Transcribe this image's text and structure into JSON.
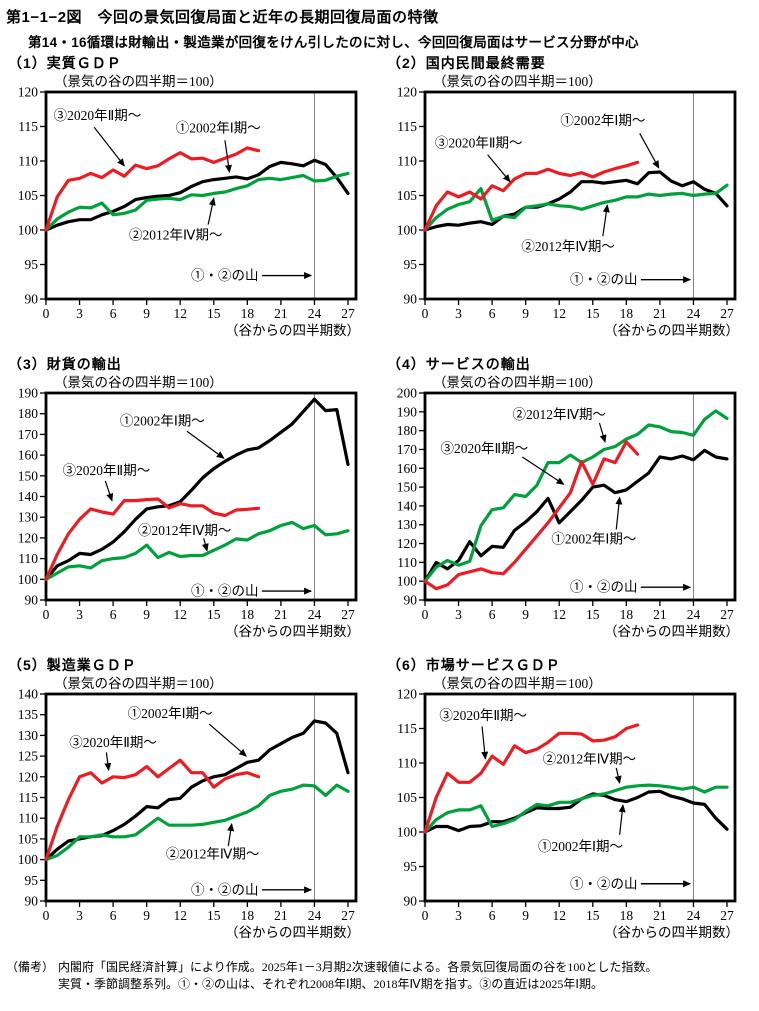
{
  "page": {
    "title": "第1−1−2図　今回の景気回復局面と近年の長期回復局面の特徴",
    "subtitle": "第14・16循環は財輸出・製造業が回復をけん引したのに対し、今回回復局面はサービス分野が中心"
  },
  "notes": {
    "prefix": "（備考）",
    "line1": "内閣府「国民経済計算」により作成。2025年1－3月期2次速報値による。各景気回復局面の谷を100とした指数。",
    "line2": "実質・季節調整系列。①・②の山は、それぞれ2008年Ⅰ期、2018年Ⅳ期を指す。③の直近は2025年Ⅰ期。"
  },
  "style": {
    "red": "#ee1b23",
    "green": "#00a13d",
    "black": "#000000",
    "peak_line_color": "#808080"
  },
  "chart_data": [
    {
      "type": "line",
      "panel_title": "（1）実質ＧＤＰ",
      "unit_note": "（景気の谷の四半期＝100）",
      "xaxis_note": "（谷からの四半期数）",
      "ylim": [
        90,
        120
      ],
      "ytick_step": 5,
      "xticks": [
        0,
        3,
        6,
        9,
        12,
        15,
        18,
        21,
        24,
        27
      ],
      "peak_line_x": 24,
      "peak_label": {
        "text": "①・②の山",
        "y": 93.4,
        "x_text_end": 19.0,
        "x_arrow_start": 19.3,
        "x_arrow_end": 23.7
      },
      "series": [
        {
          "name": "①2002年Ⅰ期〜",
          "color_key": "black",
          "values": [
            100,
            100.7,
            101.2,
            101.5,
            101.5,
            102.2,
            102.7,
            103.4,
            104.4,
            104.7,
            104.9,
            105.0,
            105.4,
            106.3,
            107.0,
            107.3,
            107.5,
            107.7,
            107.4,
            108.0,
            109.2,
            109.8,
            109.6,
            109.3,
            110.1,
            109.5,
            107.6,
            105.3
          ]
        },
        {
          "name": "②2012年Ⅳ期〜",
          "color_key": "green",
          "values": [
            100,
            101.6,
            102.6,
            103.3,
            103.2,
            103.9,
            102.2,
            102.4,
            102.9,
            104.3,
            104.5,
            104.6,
            104.4,
            105.1,
            105.0,
            105.3,
            105.5,
            106.0,
            106.4,
            107.3,
            107.5,
            107.3,
            107.6,
            107.9,
            107.1,
            107.2,
            107.8,
            108.2
          ]
        },
        {
          "name": "③2020年Ⅱ期〜",
          "color_key": "red",
          "values": [
            100,
            104.8,
            107.2,
            107.5,
            108.2,
            107.6,
            108.7,
            107.8,
            109.4,
            108.9,
            109.3,
            110.3,
            111.2,
            110.3,
            110.4,
            109.8,
            110.4,
            111.0,
            111.9,
            111.5
          ]
        }
      ],
      "labels": [
        {
          "text": "③2020年Ⅱ期〜",
          "x": 4.6,
          "y": 116.6,
          "arrow": [
            4.3,
            114.9,
            7.0,
            109.3
          ]
        },
        {
          "text": "①2002年Ⅰ期〜",
          "x": 15.4,
          "y": 114.8,
          "arrow": [
            16.0,
            113.0,
            16.4,
            108.4
          ]
        },
        {
          "text": "②2012年Ⅳ期〜",
          "x": 11.6,
          "y": 99.3,
          "arrow": [
            14.5,
            100.8,
            15.0,
            104.6
          ]
        }
      ]
    },
    {
      "type": "line",
      "panel_title": "（2）国内民間最終需要",
      "unit_note": "（景気の谷の四半期＝100）",
      "xaxis_note": "（谷からの四半期数）",
      "ylim": [
        90,
        120
      ],
      "ytick_step": 5,
      "xticks": [
        0,
        3,
        6,
        9,
        12,
        15,
        18,
        21,
        24,
        27
      ],
      "peak_line_x": 24,
      "peak_label": {
        "text": "①・②の山",
        "y": 92.8,
        "x_text_end": 19.0,
        "x_arrow_start": 19.3,
        "x_arrow_end": 23.7
      },
      "series": [
        {
          "name": "①2002年Ⅰ期〜",
          "color_key": "black",
          "values": [
            100,
            100.5,
            100.8,
            100.7,
            101.0,
            101.2,
            100.8,
            102.0,
            102.3,
            103.3,
            103.3,
            103.8,
            104.5,
            105.5,
            107.0,
            107.0,
            106.8,
            107.0,
            107.2,
            106.7,
            108.3,
            108.4,
            107.1,
            106.4,
            107.0,
            105.9,
            105.3,
            103.5
          ]
        },
        {
          "name": "②2012年Ⅳ期〜",
          "color_key": "green",
          "values": [
            100,
            101.8,
            103.0,
            103.7,
            104.1,
            106.0,
            101.4,
            102.0,
            101.8,
            103.3,
            103.5,
            103.8,
            103.5,
            103.4,
            103.0,
            103.5,
            104.0,
            104.3,
            104.8,
            104.8,
            105.2,
            105.0,
            105.2,
            105.3,
            105.0,
            105.2,
            105.3,
            106.5
          ]
        },
        {
          "name": "③2020年Ⅱ期〜",
          "color_key": "red",
          "values": [
            100,
            103.5,
            105.5,
            104.8,
            105.5,
            104.5,
            106.4,
            105.7,
            107.4,
            108.2,
            108.2,
            108.8,
            108.2,
            107.9,
            108.3,
            107.7,
            108.4,
            108.9,
            109.3,
            109.8
          ]
        }
      ],
      "labels": [
        {
          "text": "①2002年Ⅰ期〜",
          "x": 15.9,
          "y": 115.9,
          "arrow": [
            19.2,
            114.0,
            20.9,
            109.0
          ]
        },
        {
          "text": "③2020年Ⅱ期〜",
          "x": 4.8,
          "y": 112.6,
          "arrow": [
            5.6,
            110.9,
            7.6,
            107.0
          ]
        },
        {
          "text": "②2012年Ⅳ期〜",
          "x": 12.8,
          "y": 97.6,
          "arrow": [
            15.9,
            99.1,
            16.3,
            103.6
          ]
        }
      ]
    },
    {
      "type": "line",
      "panel_title": "（3）財貨の輸出",
      "unit_note": "（景気の谷の四半期＝100）",
      "xaxis_note": "（谷からの四半期数）",
      "ylim": [
        90,
        190
      ],
      "ytick_step": 10,
      "xticks": [
        0,
        3,
        6,
        9,
        12,
        15,
        18,
        21,
        24,
        27
      ],
      "peak_line_x": 24,
      "peak_label": {
        "text": "①・②の山",
        "y": 94.3,
        "x_text_end": 19.0,
        "x_arrow_start": 19.3,
        "x_arrow_end": 23.7
      },
      "series": [
        {
          "name": "①2002年Ⅰ期〜",
          "color_key": "black",
          "values": [
            100,
            106.5,
            109,
            112.5,
            112,
            114.5,
            118,
            123,
            129,
            134,
            135,
            135.5,
            137.5,
            143,
            149,
            153.5,
            157,
            160,
            162.5,
            163.5,
            167,
            171,
            175,
            181,
            187,
            181.5,
            182,
            155.5
          ]
        },
        {
          "name": "②2012年Ⅳ期〜",
          "color_key": "green",
          "values": [
            100,
            103,
            106,
            106.5,
            105.5,
            109,
            110,
            110.5,
            112.5,
            116.5,
            110.5,
            113,
            111,
            111.5,
            111.5,
            114,
            116.5,
            119.5,
            119,
            122,
            123.5,
            126,
            127.5,
            124.5,
            126,
            121.5,
            122,
            123.5
          ]
        },
        {
          "name": "③2020年Ⅱ期〜",
          "color_key": "red",
          "values": [
            100,
            112,
            122,
            129,
            134,
            132.5,
            131.5,
            138,
            138,
            138.5,
            138.8,
            134.5,
            136.5,
            135.5,
            135.5,
            132,
            130.8,
            133.5,
            133.8,
            134.3
          ]
        }
      ],
      "labels": [
        {
          "text": "①2002年Ⅰ期〜",
          "x": 10.4,
          "y": 176.5,
          "arrow": [
            12.6,
            171.5,
            15.9,
            158.5
          ]
        },
        {
          "text": "③2020年Ⅱ期〜",
          "x": 5.4,
          "y": 152.5,
          "arrow": [
            5.3,
            147.5,
            5.9,
            138.0
          ]
        },
        {
          "text": "②2012年Ⅳ期〜",
          "x": 12.4,
          "y": 123.5,
          "arrow": [
            14.1,
            119.8,
            14.4,
            113.8
          ]
        }
      ]
    },
    {
      "type": "line",
      "panel_title": "（4）サービスの輸出",
      "unit_note": "（景気の谷の四半期＝100）",
      "xaxis_note": "（谷からの四半期数）",
      "ylim": [
        90,
        200
      ],
      "ytick_step": 10,
      "xticks": [
        0,
        3,
        6,
        9,
        12,
        15,
        18,
        21,
        24,
        27
      ],
      "peak_line_x": 24,
      "peak_label": {
        "text": "①・②の山",
        "y": 96.8,
        "x_text_end": 19.0,
        "x_arrow_start": 19.3,
        "x_arrow_end": 23.7
      },
      "series": [
        {
          "name": "①2002年Ⅰ期〜",
          "color_key": "black",
          "values": [
            100,
            110,
            106.5,
            111,
            121,
            113.5,
            118.5,
            118,
            127,
            131.5,
            137,
            144,
            131,
            137,
            143,
            150,
            151,
            147,
            148.5,
            153,
            157.5,
            166,
            165,
            166.5,
            164.5,
            169.5,
            166,
            165
          ]
        },
        {
          "name": "②2012年Ⅳ期〜",
          "color_key": "green",
          "values": [
            100,
            107.5,
            111,
            108.5,
            110.5,
            129.5,
            138,
            139,
            146,
            145,
            151,
            163,
            163,
            167,
            163,
            166,
            170,
            171.5,
            175.5,
            178,
            183,
            182,
            179.5,
            179,
            177.5,
            186,
            190.5,
            186.5
          ]
        },
        {
          "name": "③2020年Ⅱ期〜",
          "color_key": "red",
          "values": [
            100,
            96,
            98,
            103.5,
            105,
            106.5,
            104.5,
            104,
            110,
            117,
            124,
            131,
            139,
            147,
            163.5,
            151.5,
            165,
            163,
            174,
            167.5
          ]
        }
      ],
      "labels": [
        {
          "text": "②2012年Ⅳ期〜",
          "x": 12.0,
          "y": 188.5,
          "arrow": [
            15.6,
            184.0,
            16.1,
            174.0
          ]
        },
        {
          "text": "③2020年Ⅱ期〜",
          "x": 5.3,
          "y": 170.5,
          "arrow": [
            8.7,
            166.0,
            12.4,
            151.5
          ]
        },
        {
          "text": "①2002年Ⅰ期〜",
          "x": 15.1,
          "y": 122.5,
          "arrow": [
            17.1,
            127.5,
            17.4,
            144.5
          ]
        }
      ]
    },
    {
      "type": "line",
      "panel_title": "（5）製造業ＧＤＰ",
      "unit_note": "（景気の谷の四半期＝100）",
      "xaxis_note": "（谷からの四半期数）",
      "ylim": [
        90,
        140
      ],
      "ytick_step": 5,
      "xticks": [
        0,
        3,
        6,
        9,
        12,
        15,
        18,
        21,
        24,
        27
      ],
      "peak_line_x": 24,
      "peak_label": {
        "text": "①・②の山",
        "y": 92.7,
        "x_text_end": 19.0,
        "x_arrow_start": 19.3,
        "x_arrow_end": 23.7
      },
      "series": [
        {
          "name": "①2002年Ⅰ期〜",
          "color_key": "black",
          "values": [
            100,
            102.5,
            104.5,
            105,
            105.5,
            105.8,
            107,
            108.5,
            110.5,
            112.8,
            112.5,
            114.5,
            114.8,
            117.5,
            119,
            120,
            120.5,
            122,
            123.5,
            124,
            126.5,
            128,
            129.5,
            130.5,
            133.5,
            133,
            130.5,
            121
          ]
        },
        {
          "name": "②2012年Ⅳ期〜",
          "color_key": "green",
          "values": [
            100,
            101,
            103,
            105.5,
            105.5,
            106,
            105.5,
            105.5,
            106,
            108,
            110,
            108.3,
            108.3,
            108.3,
            108.5,
            109,
            109.5,
            110.5,
            111.5,
            113,
            115.5,
            116.5,
            117,
            118,
            117.8,
            115.5,
            118,
            116.5
          ]
        },
        {
          "name": "③2020年Ⅱ期〜",
          "color_key": "red",
          "values": [
            100,
            108,
            114.5,
            120,
            121,
            118.5,
            120,
            119.8,
            120.5,
            122.5,
            120,
            122,
            124,
            121,
            121,
            117.5,
            119.5,
            120.5,
            121,
            120
          ]
        }
      ],
      "labels": [
        {
          "text": "①2002年Ⅰ期〜",
          "x": 11.1,
          "y": 135.3,
          "arrow": [
            14.6,
            132.7,
            17.9,
            125.0
          ]
        },
        {
          "text": "③2020年Ⅱ期〜",
          "x": 6.0,
          "y": 128.3,
          "arrow": [
            5.4,
            125.9,
            5.6,
            121.6
          ]
        },
        {
          "text": "②2012年Ⅳ期〜",
          "x": 14.9,
          "y": 101.4,
          "arrow": [
            16.3,
            103.3,
            16.6,
            108.6
          ]
        }
      ]
    },
    {
      "type": "line",
      "panel_title": "（6）市場サービスＧＤＰ",
      "unit_note": "（景気の谷の四半期＝100）",
      "xaxis_note": "（谷からの四半期数）",
      "ylim": [
        90,
        120
      ],
      "ytick_step": 5,
      "xticks": [
        0,
        3,
        6,
        9,
        12,
        15,
        18,
        21,
        24,
        27
      ],
      "peak_line_x": 24,
      "peak_label": {
        "text": "①・②の山",
        "y": 92.5,
        "x_text_end": 19.0,
        "x_arrow_start": 19.3,
        "x_arrow_end": 23.7
      },
      "series": [
        {
          "name": "①2002年Ⅰ期〜",
          "color_key": "black",
          "values": [
            100,
            100.8,
            100.8,
            100.2,
            100.8,
            100.9,
            101.5,
            101.5,
            102,
            102.8,
            103.5,
            103.4,
            103.4,
            103.6,
            104.8,
            105.5,
            105.3,
            104.7,
            104.4,
            105,
            105.8,
            105.9,
            105.2,
            104.8,
            104.2,
            104,
            102,
            100.4
          ]
        },
        {
          "name": "②2012年Ⅳ期〜",
          "color_key": "green",
          "values": [
            100,
            101.8,
            102.8,
            103.2,
            103.2,
            103.8,
            100.8,
            101.2,
            101.8,
            103,
            104,
            103.8,
            104.3,
            104.3,
            104.8,
            105.3,
            105.5,
            106,
            106.5,
            106.7,
            106.8,
            106.7,
            106.5,
            106.2,
            106.5,
            105.8,
            106.5,
            106.5
          ]
        },
        {
          "name": "③2020年Ⅱ期〜",
          "color_key": "red",
          "values": [
            100,
            105,
            108.5,
            107.2,
            107.2,
            108.5,
            111,
            109.8,
            112.5,
            111.5,
            112,
            113,
            114.3,
            114.3,
            114.2,
            113.2,
            113.3,
            113.8,
            115,
            115.5
          ]
        }
      ],
      "labels": [
        {
          "text": "③2020年Ⅱ期〜",
          "x": 5.2,
          "y": 116.9,
          "arrow": [
            5.1,
            115.3,
            5.4,
            110.6
          ]
        },
        {
          "text": "②2012年Ⅳ期〜",
          "x": 14.7,
          "y": 110.6,
          "arrow": [
            17.1,
            109.3,
            17.4,
            107.1
          ]
        },
        {
          "text": "①2002年Ⅰ期〜",
          "x": 13.9,
          "y": 97.9,
          "arrow": [
            17.4,
            99.6,
            17.7,
            103.9
          ]
        }
      ]
    }
  ]
}
